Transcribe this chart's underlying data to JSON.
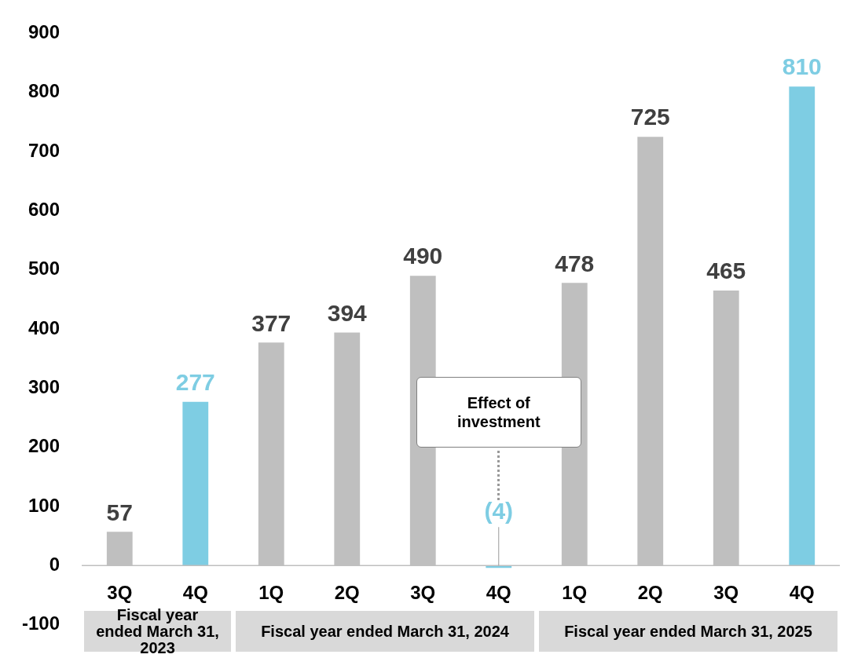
{
  "chart_data": {
    "type": "bar",
    "categories": [
      "3Q",
      "4Q",
      "1Q",
      "2Q",
      "3Q",
      "4Q",
      "1Q",
      "2Q",
      "3Q",
      "4Q"
    ],
    "values": [
      57,
      277,
      377,
      394,
      490,
      -4,
      478,
      725,
      465,
      810
    ],
    "colors": [
      "#bfbfbf",
      "#7ecde3",
      "#bfbfbf",
      "#bfbfbf",
      "#bfbfbf",
      "#7ecde3",
      "#bfbfbf",
      "#bfbfbf",
      "#bfbfbf",
      "#7ecde3"
    ],
    "value_labels": [
      "57",
      "277",
      "377",
      "394",
      "490",
      "(4)",
      "478",
      "725",
      "465",
      "810"
    ],
    "ylim": [
      -100,
      900
    ],
    "yticks": [
      -100,
      0,
      100,
      200,
      300,
      400,
      500,
      600,
      700,
      800,
      900
    ],
    "annotations": [
      "Effect of investment",
      "Fiscal year ended March 31, 2023",
      "Fiscal year ended March 31, 2024",
      "Fiscal year ended March 31, 2025"
    ]
  }
}
